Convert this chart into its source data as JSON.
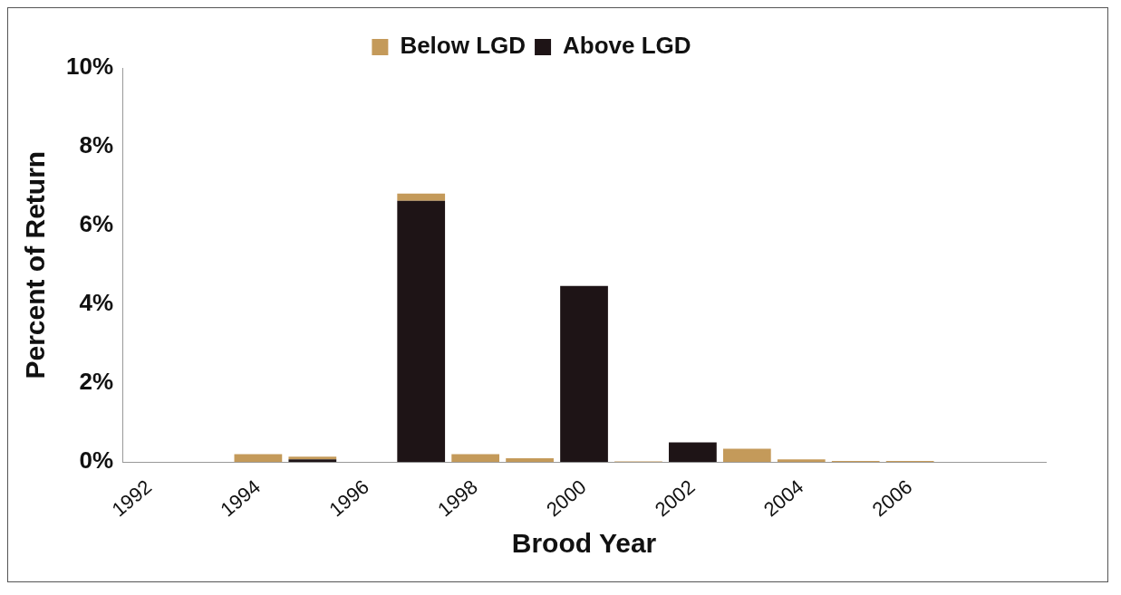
{
  "chart_data": {
    "type": "bar",
    "xlabel": "Brood Year",
    "ylabel": "Percent of Return",
    "categories": [
      "1992",
      null,
      "1994",
      null,
      "1996",
      null,
      "1998",
      null,
      "2000",
      null,
      "2002",
      null,
      "2004",
      null,
      "2006",
      null,
      null
    ],
    "series": [
      {
        "name": "Above LGD",
        "color": "#1e1416",
        "values": [
          0,
          0,
          0,
          0.07,
          0,
          6.63,
          0,
          0,
          4.47,
          0,
          0.5,
          0,
          0,
          0,
          0,
          0,
          0
        ]
      },
      {
        "name": "Below LGD",
        "color": "#c49a5a",
        "values": [
          0,
          0,
          0.2,
          0.07,
          0,
          0.18,
          0.2,
          0.1,
          0,
          0.02,
          0,
          0.34,
          0.07,
          0.03,
          0.03,
          0,
          0
        ]
      }
    ],
    "stacked": true,
    "ylim": [
      0,
      10
    ],
    "yticks": [
      {
        "value": 0,
        "label": "0%"
      },
      {
        "value": 2,
        "label": "2%"
      },
      {
        "value": 4,
        "label": "4%"
      },
      {
        "value": 6,
        "label": "6%"
      },
      {
        "value": 8,
        "label": "8%"
      },
      {
        "value": 10,
        "label": "10%"
      }
    ],
    "grid": false,
    "legend": "top"
  }
}
